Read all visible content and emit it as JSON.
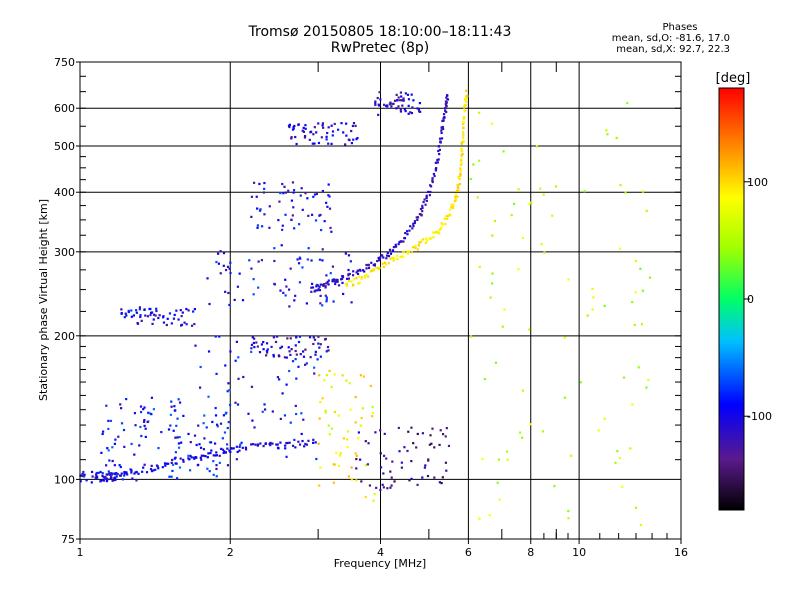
{
  "header": {
    "title_line1": "Tromsø 20150805 18:10:00–18:11:43",
    "title_line2": "RwPretec (8p)"
  },
  "phases_box": {
    "heading": "Phases",
    "line_o": "mean, sd,O: -81.6, 17.0",
    "line_x": "mean, sd,X:  92.7, 22.3"
  },
  "colorbar": {
    "unit_label": "[deg]",
    "ticks": [
      {
        "value": 100,
        "label": "100"
      },
      {
        "value": 0,
        "label": "0"
      },
      {
        "value": -100,
        "label": "-100"
      }
    ],
    "range": [
      -180,
      180
    ]
  },
  "chart_data": {
    "type": "scatter",
    "xlabel": "Frequency [MHz]",
    "ylabel": "Stationary phase Virtual Height [km]",
    "x_scale": "log",
    "y_scale": "log",
    "xlim": [
      1,
      16
    ],
    "ylim": [
      75,
      750
    ],
    "x_ticks": [
      1,
      2,
      4,
      6,
      8,
      10,
      16
    ],
    "x_minor_ticks": [
      3,
      5,
      7,
      9
    ],
    "y_ticks": [
      75,
      100,
      200,
      300,
      400,
      500,
      600,
      750
    ],
    "grid": true,
    "color_encoding": "phase [deg]",
    "clusters": [
      {
        "x_range": [
          1.0,
          1.3
        ],
        "y_range": [
          99,
          104
        ],
        "phase": -100
      },
      {
        "x_range": [
          1.1,
          1.6
        ],
        "y_range": [
          104,
          150
        ],
        "phase": -85
      },
      {
        "x_range": [
          1.5,
          2.0
        ],
        "y_range": [
          100,
          145
        ],
        "phase": -85
      },
      {
        "x_range": [
          1.7,
          3.0
        ],
        "y_range": [
          110,
          200
        ],
        "phase": -90
      },
      {
        "x_range": [
          2.2,
          3.2
        ],
        "y_range": [
          180,
          200
        ],
        "phase": -110
      },
      {
        "x_range": [
          1.2,
          1.7
        ],
        "y_range": [
          210,
          230
        ],
        "phase": -100
      },
      {
        "x_range": [
          1.8,
          3.5
        ],
        "y_range": [
          230,
          310
        ],
        "phase": -95
      },
      {
        "x_range": [
          2.2,
          3.2
        ],
        "y_range": [
          330,
          420
        ],
        "phase": -100
      },
      {
        "x_range": [
          2.6,
          3.6
        ],
        "y_range": [
          500,
          560
        ],
        "phase": -110
      },
      {
        "x_range": [
          3.0,
          3.9
        ],
        "y_range": [
          90,
          170
        ],
        "phase": 85
      },
      {
        "x_range": [
          3.9,
          4.8
        ],
        "y_range": [
          580,
          650
        ],
        "phase": -110
      },
      {
        "x_range": [
          6.0,
          14.0
        ],
        "y_range": [
          80,
          620
        ],
        "phase": 60
      },
      {
        "x_range": [
          3.5,
          5.5
        ],
        "y_range": [
          95,
          130
        ],
        "phase": -130
      }
    ],
    "traces": [
      {
        "name": "",
        "phase": -110,
        "points": [
          [
            2.9,
            250
          ],
          [
            3.1,
            255
          ],
          [
            3.3,
            262
          ],
          [
            3.6,
            272
          ],
          [
            3.9,
            285
          ],
          [
            4.2,
            300
          ],
          [
            4.5,
            325
          ],
          [
            4.8,
            360
          ],
          [
            5.0,
            400
          ],
          [
            5.2,
            460
          ],
          [
            5.3,
            530
          ],
          [
            5.4,
            600
          ],
          [
            5.45,
            640
          ]
        ]
      },
      {
        "name": "",
        "phase": 95,
        "points": [
          [
            3.4,
            255
          ],
          [
            3.7,
            265
          ],
          [
            4.0,
            280
          ],
          [
            4.4,
            295
          ],
          [
            4.8,
            310
          ],
          [
            5.2,
            330
          ],
          [
            5.5,
            360
          ],
          [
            5.7,
            400
          ],
          [
            5.8,
            450
          ],
          [
            5.85,
            520
          ],
          [
            5.9,
            600
          ],
          [
            5.95,
            650
          ]
        ]
      },
      {
        "name": "",
        "phase": -100,
        "points": [
          [
            1.05,
            100
          ],
          [
            1.2,
            102
          ],
          [
            1.4,
            106
          ],
          [
            1.6,
            110
          ],
          [
            1.8,
            112
          ],
          [
            2.0,
            115
          ],
          [
            2.3,
            118
          ],
          [
            2.6,
            118
          ],
          [
            3.0,
            120
          ]
        ]
      }
    ]
  }
}
